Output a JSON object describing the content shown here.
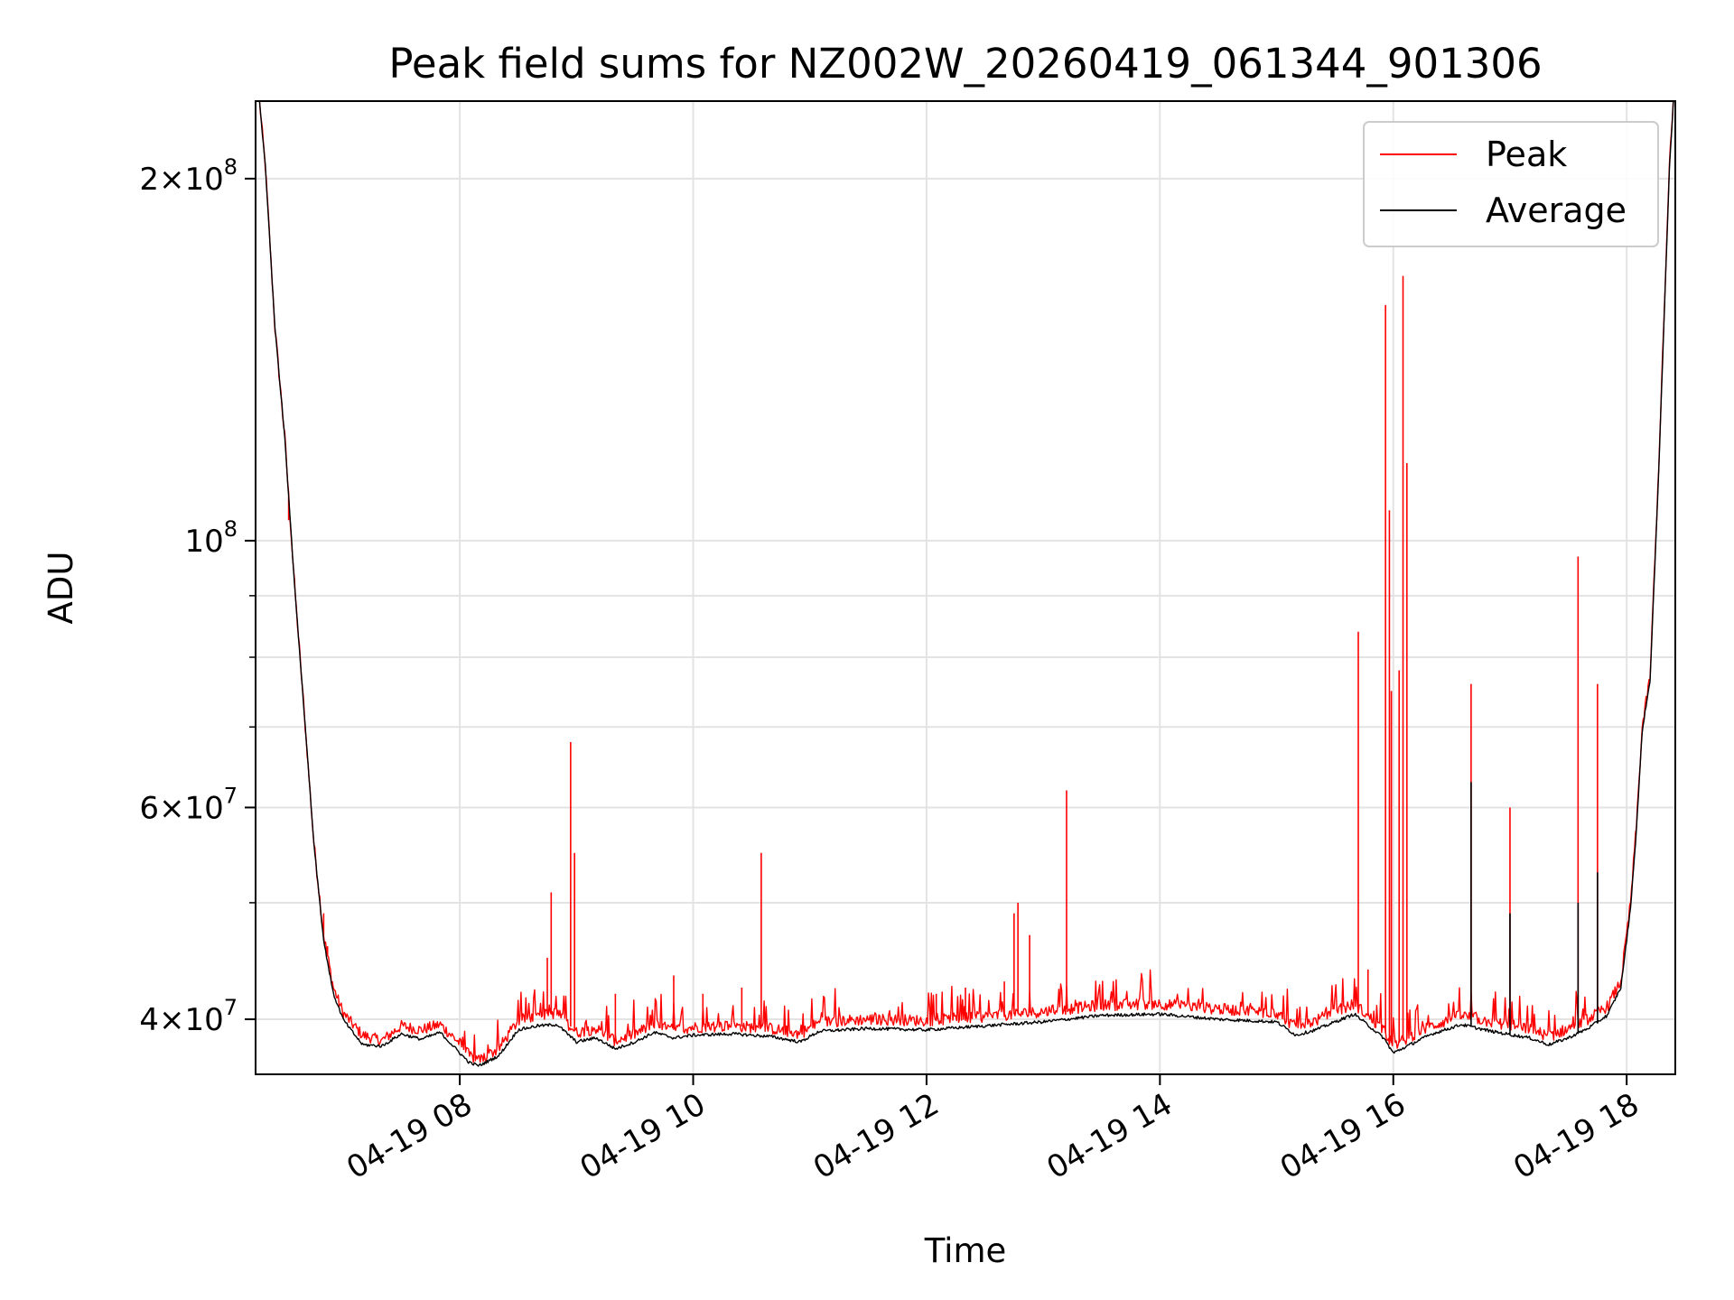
{
  "chart_data": {
    "type": "line",
    "title": "Peak field sums for NZ002W_20260419_061344_901306",
    "xlabel": "Time",
    "ylabel": "ADU",
    "yscale": "log",
    "ylim": [
      36000000,
      232000000
    ],
    "xlim": [
      "04-19 06:15",
      "04-19 18:25"
    ],
    "grid": true,
    "legend_position": "top-right",
    "x_tick_labels": [
      "04-19 08",
      "04-19 10",
      "04-19 12",
      "04-19 14",
      "04-19 16",
      "04-19 18"
    ],
    "x_tick_values": [
      "08:00",
      "10:00",
      "12:00",
      "14:00",
      "16:00",
      "18:00"
    ],
    "y_tick_labels": [
      {
        "value": 200000000,
        "mantissa": "2",
        "exponent": "8"
      },
      {
        "value": 100000000,
        "mantissa": "",
        "exponent": "8"
      },
      {
        "value": 60000000,
        "mantissa": "6",
        "exponent": "7"
      },
      {
        "value": 40000000,
        "mantissa": "4",
        "exponent": "7"
      }
    ],
    "y_minor_ticks": [
      50000000,
      70000000,
      80000000,
      90000000
    ],
    "series": [
      {
        "name": "Peak",
        "color": "#ff0000",
        "baseline": [
          [
            "06:17",
            232000000
          ],
          [
            "06:20",
            205000000
          ],
          [
            "06:25",
            150000000
          ],
          [
            "06:30",
            122000000
          ],
          [
            "06:35",
            92000000
          ],
          [
            "06:40",
            72000000
          ],
          [
            "06:45",
            56000000
          ],
          [
            "06:50",
            47000000
          ],
          [
            "06:55",
            42500000
          ],
          [
            "07:00",
            40500000
          ],
          [
            "07:05",
            39600000
          ],
          [
            "07:10",
            38800000
          ],
          [
            "07:20",
            38400000
          ],
          [
            "07:30",
            39500000
          ],
          [
            "07:40",
            39200000
          ],
          [
            "07:50",
            39600000
          ],
          [
            "08:00",
            38200000
          ],
          [
            "08:05",
            37300000
          ],
          [
            "08:10",
            37000000
          ],
          [
            "08:20",
            37800000
          ],
          [
            "08:30",
            39900000
          ],
          [
            "08:40",
            40300000
          ],
          [
            "08:50",
            40500000
          ],
          [
            "09:00",
            39000000
          ],
          [
            "09:10",
            39300000
          ],
          [
            "09:20",
            38400000
          ],
          [
            "09:30",
            38900000
          ],
          [
            "09:40",
            39600000
          ],
          [
            "09:50",
            39200000
          ],
          [
            "10:00",
            39400000
          ],
          [
            "10:20",
            39500000
          ],
          [
            "10:40",
            39300000
          ],
          [
            "10:55",
            38900000
          ],
          [
            "11:05",
            39800000
          ],
          [
            "11:30",
            40000000
          ],
          [
            "12:00",
            39900000
          ],
          [
            "12:30",
            40200000
          ],
          [
            "13:00",
            40600000
          ],
          [
            "13:30",
            41100000
          ],
          [
            "14:00",
            41200000
          ],
          [
            "14:30",
            40800000
          ],
          [
            "15:00",
            40500000
          ],
          [
            "15:10",
            39400000
          ],
          [
            "15:20",
            39900000
          ],
          [
            "15:40",
            41200000
          ],
          [
            "15:55",
            39200000
          ],
          [
            "16:00",
            38000000
          ],
          [
            "16:10",
            38800000
          ],
          [
            "16:20",
            39500000
          ],
          [
            "16:35",
            40300000
          ],
          [
            "16:50",
            39800000
          ],
          [
            "17:10",
            39300000
          ],
          [
            "17:20",
            38700000
          ],
          [
            "17:30",
            39300000
          ],
          [
            "17:40",
            40000000
          ],
          [
            "17:50",
            41000000
          ],
          [
            "17:57",
            43000000
          ],
          [
            "18:02",
            50000000
          ],
          [
            "18:05",
            58000000
          ],
          [
            "18:08",
            70000000
          ],
          [
            "18:12",
            77000000
          ],
          [
            "18:16",
            110000000
          ],
          [
            "18:19",
            150000000
          ],
          [
            "18:22",
            205000000
          ],
          [
            "18:24",
            232000000
          ]
        ],
        "spikes": [
          [
            "06:32",
            104000000
          ],
          [
            "06:50",
            49000000
          ],
          [
            "06:52",
            46000000
          ],
          [
            "08:45",
            45000000
          ],
          [
            "08:47",
            51000000
          ],
          [
            "08:57",
            68000000
          ],
          [
            "08:59",
            55000000
          ],
          [
            "09:20",
            42000000
          ],
          [
            "09:50",
            43500000
          ],
          [
            "10:05",
            42000000
          ],
          [
            "10:25",
            42500000
          ],
          [
            "10:35",
            55000000
          ],
          [
            "12:05",
            42000000
          ],
          [
            "12:20",
            42500000
          ],
          [
            "12:40",
            43000000
          ],
          [
            "12:45",
            49000000
          ],
          [
            "12:47",
            50000000
          ],
          [
            "12:53",
            47000000
          ],
          [
            "13:12",
            62000000
          ],
          [
            "15:42",
            84000000
          ],
          [
            "15:47",
            44000000
          ],
          [
            "15:56",
            157000000
          ],
          [
            "15:58",
            106000000
          ],
          [
            "15:59",
            75000000
          ],
          [
            "16:03",
            78000000
          ],
          [
            "16:05",
            166000000
          ],
          [
            "16:07",
            116000000
          ],
          [
            "16:40",
            76000000
          ],
          [
            "17:00",
            60000000
          ],
          [
            "17:35",
            97000000
          ],
          [
            "17:45",
            76000000
          ]
        ]
      },
      {
        "name": "Average",
        "color": "#000000",
        "baseline": [
          [
            "06:17",
            232000000
          ],
          [
            "06:20",
            205000000
          ],
          [
            "06:25",
            150000000
          ],
          [
            "06:30",
            122000000
          ],
          [
            "06:35",
            92000000
          ],
          [
            "06:40",
            72000000
          ],
          [
            "06:45",
            56000000
          ],
          [
            "06:50",
            46500000
          ],
          [
            "06:55",
            42000000
          ],
          [
            "07:00",
            40000000
          ],
          [
            "07:05",
            39000000
          ],
          [
            "07:10",
            38100000
          ],
          [
            "07:20",
            38000000
          ],
          [
            "07:30",
            38900000
          ],
          [
            "07:40",
            38500000
          ],
          [
            "07:50",
            39000000
          ],
          [
            "08:00",
            37500000
          ],
          [
            "08:05",
            36800000
          ],
          [
            "08:10",
            36600000
          ],
          [
            "08:20",
            37300000
          ],
          [
            "08:30",
            39200000
          ],
          [
            "08:40",
            39500000
          ],
          [
            "08:50",
            39600000
          ],
          [
            "09:00",
            38300000
          ],
          [
            "09:10",
            38600000
          ],
          [
            "09:20",
            37800000
          ],
          [
            "09:30",
            38300000
          ],
          [
            "09:40",
            39000000
          ],
          [
            "09:50",
            38600000
          ],
          [
            "10:00",
            38800000
          ],
          [
            "10:20",
            38900000
          ],
          [
            "10:40",
            38700000
          ],
          [
            "10:55",
            38300000
          ],
          [
            "11:05",
            39100000
          ],
          [
            "11:30",
            39300000
          ],
          [
            "12:00",
            39200000
          ],
          [
            "12:30",
            39500000
          ],
          [
            "13:00",
            39800000
          ],
          [
            "13:30",
            40300000
          ],
          [
            "14:00",
            40400000
          ],
          [
            "14:30",
            40000000
          ],
          [
            "15:00",
            39800000
          ],
          [
            "15:10",
            38800000
          ],
          [
            "15:20",
            39200000
          ],
          [
            "15:40",
            40400000
          ],
          [
            "15:55",
            38600000
          ],
          [
            "16:00",
            37500000
          ],
          [
            "16:10",
            38200000
          ],
          [
            "16:20",
            38900000
          ],
          [
            "16:35",
            39600000
          ],
          [
            "16:50",
            39100000
          ],
          [
            "17:10",
            38600000
          ],
          [
            "17:20",
            38100000
          ],
          [
            "17:30",
            38600000
          ],
          [
            "17:40",
            39300000
          ],
          [
            "17:50",
            40300000
          ],
          [
            "17:57",
            42500000
          ],
          [
            "18:02",
            49500000
          ],
          [
            "18:05",
            57500000
          ],
          [
            "18:08",
            69500000
          ],
          [
            "18:12",
            76500000
          ],
          [
            "18:16",
            109000000
          ],
          [
            "18:19",
            149000000
          ],
          [
            "18:22",
            204000000
          ],
          [
            "18:24",
            232000000
          ]
        ],
        "spikes": [
          [
            "16:40",
            63000000
          ],
          [
            "17:00",
            49000000
          ],
          [
            "17:35",
            50000000
          ],
          [
            "17:45",
            53000000
          ]
        ]
      }
    ]
  }
}
